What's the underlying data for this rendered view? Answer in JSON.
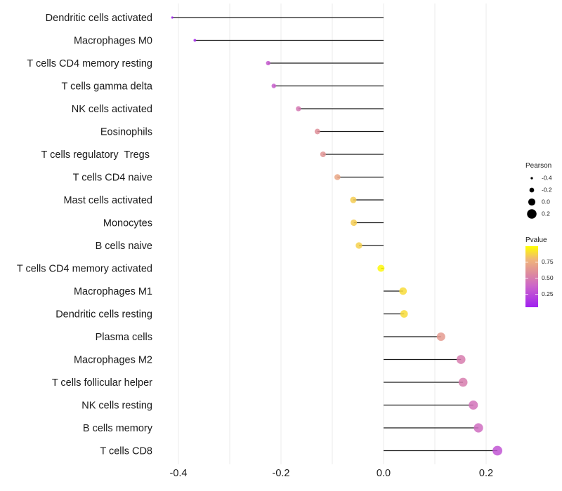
{
  "chart_data": {
    "type": "scatter",
    "subtype": "lollipop",
    "title": "",
    "xlabel": "",
    "ylabel": "",
    "xlim": [
      -0.42,
      0.24
    ],
    "x_ticks": [
      -0.4,
      -0.2,
      0.0,
      0.2
    ],
    "x_tick_labels": [
      "-0.4",
      "-0.2",
      "0.0",
      "0.2"
    ],
    "grid": true,
    "categories": [
      "Dendritic cells activated",
      "Macrophages M0",
      "T cells CD4 memory resting",
      "T cells gamma delta",
      "NK cells activated",
      "Eosinophils",
      "T cells regulatory  Tregs ",
      "T cells CD4 naive",
      "Mast cells activated",
      "Monocytes",
      "B cells naive",
      "T cells CD4 memory activated",
      "Macrophages M1",
      "Dendritic cells resting",
      "Plasma cells",
      "Macrophages M2",
      "T cells follicular helper",
      "NK cells resting",
      "B cells memory",
      "T cells CD8"
    ],
    "series": [
      {
        "name": "Pearson",
        "values": [
          -0.412,
          -0.368,
          -0.225,
          -0.214,
          -0.166,
          -0.129,
          -0.118,
          -0.09,
          -0.059,
          -0.058,
          -0.048,
          -0.005,
          0.038,
          0.04,
          0.112,
          0.151,
          0.155,
          0.175,
          0.185,
          0.222
        ]
      },
      {
        "name": "Pvalue",
        "values": [
          0.05,
          0.1,
          0.33,
          0.35,
          0.48,
          0.6,
          0.63,
          0.72,
          0.86,
          0.86,
          0.87,
          0.98,
          0.9,
          0.9,
          0.66,
          0.5,
          0.5,
          0.45,
          0.42,
          0.3
        ]
      }
    ],
    "legend": {
      "placement": "right",
      "size": {
        "title": "Pearson",
        "breaks": [
          -0.4,
          -0.2,
          0.0,
          0.2
        ],
        "labels": [
          "-0.4",
          "-0.2",
          "0.0",
          "0.2"
        ]
      },
      "color": {
        "title": "Pvalue",
        "range": [
          0.05,
          1.0
        ],
        "breaks": [
          0.25,
          0.5,
          0.75
        ],
        "labels": [
          "0.25",
          "0.50",
          "0.75"
        ],
        "low_color": "#a020f0",
        "high_color": "#ffff00"
      }
    }
  }
}
